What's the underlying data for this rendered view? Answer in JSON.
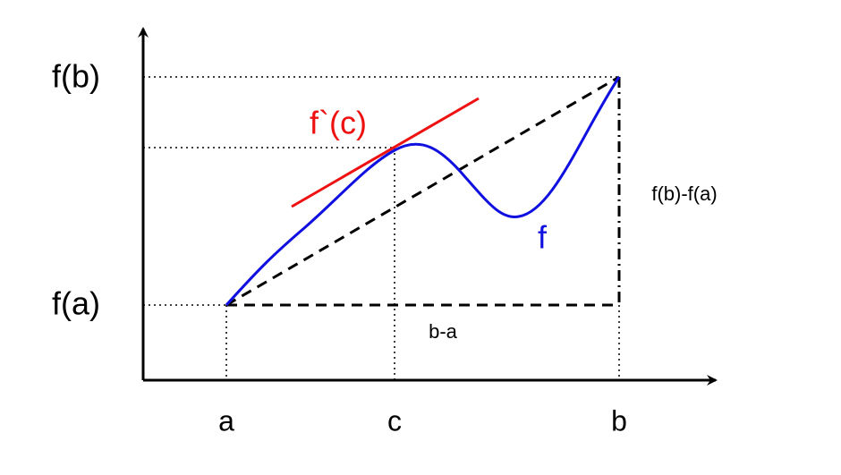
{
  "y_labels": {
    "fb": "f(b)",
    "fa": "f(a)"
  },
  "x_labels": {
    "a": "a",
    "c": "c",
    "b": "b"
  },
  "annotations": {
    "tangent": "f`(c)",
    "function": "f",
    "rise": "f(b)-f(a)",
    "run": "b-a"
  }
}
